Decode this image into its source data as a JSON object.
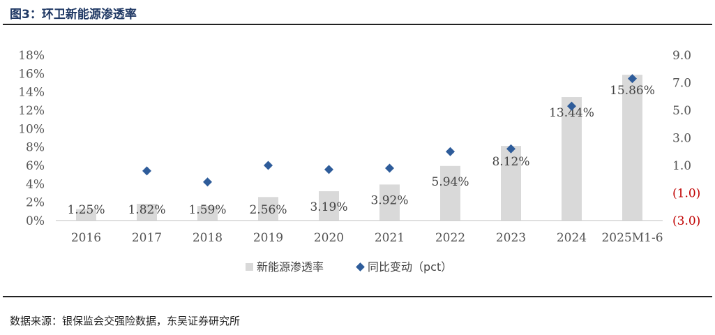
{
  "header": {
    "title": "图3：环卫新能源渗透率"
  },
  "footer": {
    "source": "数据来源：银保监会交强险数据，东吴证券研究所"
  },
  "colors": {
    "bar": "#d9d9d9",
    "marker": "#2e5c9a",
    "negative": "#c00000"
  },
  "chart_data": {
    "type": "bar",
    "title": "环卫新能源渗透率",
    "categories": [
      "2016",
      "2017",
      "2018",
      "2019",
      "2020",
      "2021",
      "2022",
      "2023",
      "2024",
      "2025M1-6"
    ],
    "series": [
      {
        "name": "新能源渗透率",
        "type": "bar",
        "axis": "left",
        "values": [
          1.25,
          1.82,
          1.59,
          2.56,
          3.19,
          3.92,
          5.94,
          8.12,
          13.44,
          15.86
        ],
        "labels": [
          "1.25%",
          "1.82%",
          "1.59%",
          "2.56%",
          "3.19%",
          "3.92%",
          "5.94%",
          "8.12%",
          "13.44%",
          "15.86%"
        ]
      },
      {
        "name": "同比变动（pct）",
        "type": "scatter",
        "axis": "right",
        "values": [
          null,
          0.6,
          -0.2,
          1.0,
          0.7,
          0.8,
          2.0,
          2.2,
          5.3,
          7.3
        ]
      }
    ],
    "y_left": {
      "ylim": [
        0,
        18
      ],
      "ticks": [
        0,
        2,
        4,
        6,
        8,
        10,
        12,
        14,
        16,
        18
      ],
      "tick_labels": [
        "0%",
        "2%",
        "4%",
        "6%",
        "8%",
        "10%",
        "12%",
        "14%",
        "16%",
        "18%"
      ]
    },
    "y_right": {
      "ylim": [
        -3,
        9
      ],
      "ticks": [
        -3,
        -1,
        1,
        3,
        5,
        7,
        9
      ],
      "tick_labels": [
        "(3.0)",
        "(1.0)",
        "1.0",
        "3.0",
        "5.0",
        "7.0",
        "9.0"
      ]
    },
    "legend": {
      "position": "bottom",
      "items": [
        "新能源渗透率",
        "同比变动（pct）"
      ]
    },
    "grid": false
  }
}
